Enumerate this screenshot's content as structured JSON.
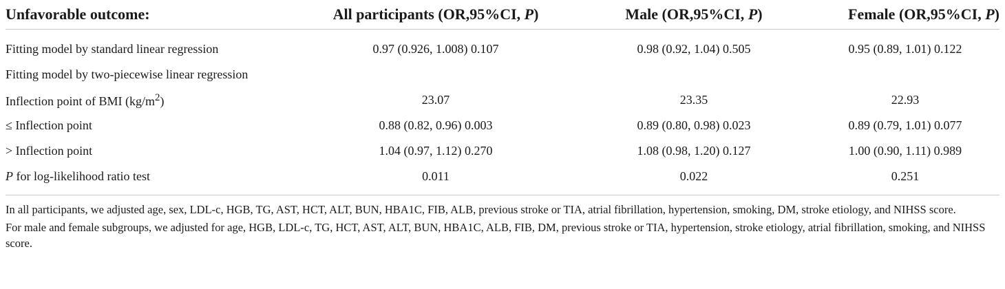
{
  "table": {
    "headers": {
      "c0": "Unfavorable outcome:",
      "c1_pre": "All participants (OR,95%CI, ",
      "c2_pre": "Male (OR,95%CI, ",
      "c3_pre": "Female (OR,95%CI, ",
      "p_letter": "P",
      "close": ")"
    },
    "rows": [
      {
        "label": "Fitting model by standard linear regression",
        "all": "0.97 (0.926, 1.008) 0.107",
        "male": "0.98 (0.92, 1.04) 0.505",
        "female": "0.95 (0.89, 1.01) 0.122"
      },
      {
        "label": "Fitting model by two-piecewise linear regression",
        "all": "",
        "male": "",
        "female": ""
      },
      {
        "label_pre": "Inflection point of BMI (kg/m",
        "label_sup": "2",
        "label_post": ")",
        "all": "23.07",
        "male": "23.35",
        "female": "22.93"
      },
      {
        "label": "≤ Inflection point",
        "all": "0.88 (0.82, 0.96) 0.003",
        "male": "0.89 (0.80, 0.98) 0.023",
        "female": "0.89 (0.79, 1.01) 0.077"
      },
      {
        "label": "> Inflection point",
        "all": "1.04 (0.97, 1.12) 0.270",
        "male": "1.08 (0.98, 1.20) 0.127",
        "female": "1.00 (0.90, 1.11) 0.989"
      },
      {
        "label_italic": "P",
        "label_rest": " for log-likelihood ratio test",
        "all": "0.011",
        "male": "0.022",
        "female": "0.251"
      }
    ]
  },
  "notes": [
    "In all participants, we adjusted age, sex, LDL-c, HGB, TG, AST, HCT, ALT, BUN, HBA1C, FIB, ALB, previous stroke or TIA, atrial fibrillation, hypertension, smoking, DM, stroke etiology, and NIHSS score.",
    "For male and female subgroups, we adjusted for age, HGB, LDL-c, TG, HCT, AST, ALT, BUN, HBA1C, ALB, FIB, DM, previous stroke or TIA, hypertension, stroke etiology, atrial fibrillation, smoking, and NIHSS score."
  ]
}
